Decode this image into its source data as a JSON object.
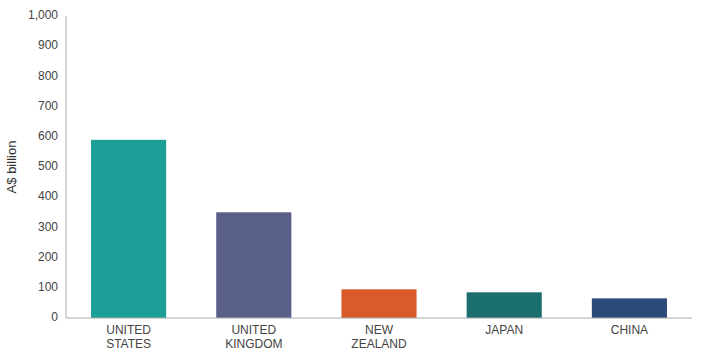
{
  "chart_data": {
    "type": "bar",
    "categories": [
      "UNITED\nSTATES",
      "UNITED\nKINGDOM",
      "NEW\nZEALAND",
      "JAPAN",
      "CHINA"
    ],
    "values": [
      590,
      350,
      95,
      85,
      65
    ],
    "colors": [
      "#1a9e96",
      "#5a5f8a",
      "#d95b2a",
      "#1a6e6e",
      "#2a4a7a"
    ],
    "ylabel": "A$ billion",
    "ylim": [
      0,
      1000
    ],
    "yticks": [
      0,
      100,
      200,
      300,
      400,
      500,
      600,
      700,
      800,
      900,
      {
        "value": 1000,
        "label": "1,000"
      }
    ],
    "grid": false
  }
}
